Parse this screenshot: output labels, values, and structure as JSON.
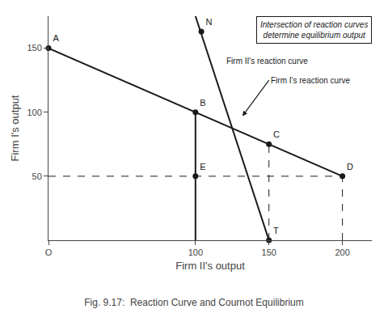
{
  "chart_data": {
    "type": "line",
    "title": "Fig. 9.17:  Reaction Curve and Cournot Equilibrium",
    "xlabel": "Firm II's output",
    "ylabel": "Firm I's output",
    "xlim": [
      0,
      220
    ],
    "ylim": [
      0,
      175
    ],
    "xticks": [
      {
        "value": 0,
        "label": "O"
      },
      100,
      150,
      200
    ],
    "yticks": [
      50,
      100,
      150
    ],
    "grid": false,
    "series": [
      {
        "x": [
          0,
          200
        ],
        "values": [
          150,
          50
        ],
        "color": "#1a1a1a",
        "line_style": "solid"
      },
      {
        "x": [
          100,
          150
        ],
        "values": [
          175,
          0
        ],
        "color": "#1a1a1a",
        "line_style": "solid"
      },
      {
        "x": [
          0,
          200
        ],
        "values": [
          50,
          50
        ],
        "color": "#1a1a1a",
        "line_style": "dashed"
      },
      {
        "x": [
          100,
          100
        ],
        "values": [
          0,
          100
        ],
        "color": "#1a1a1a",
        "line_style": "solid"
      },
      {
        "x": [
          150,
          150
        ],
        "values": [
          0,
          75
        ],
        "color": "#1a1a1a",
        "line_style": "dashed"
      },
      {
        "x": [
          200,
          200
        ],
        "values": [
          0,
          50
        ],
        "color": "#1a1a1a",
        "line_style": "dashed"
      },
      {
        "type": "scatter",
        "marker": "circle",
        "color": "#1a1a1a",
        "labels": [
          "A",
          "B",
          "C",
          "D",
          "E",
          "T",
          "N"
        ],
        "x": [
          0,
          100,
          150,
          200,
          100,
          150,
          104
        ],
        "values": [
          150,
          100,
          75,
          50,
          50,
          0,
          163
        ]
      }
    ],
    "annotations": [
      "Firm II's reaction curve",
      "Firm I's reaction curve",
      "Intersection of reaction curves\ndetermine equilibrium output"
    ]
  }
}
